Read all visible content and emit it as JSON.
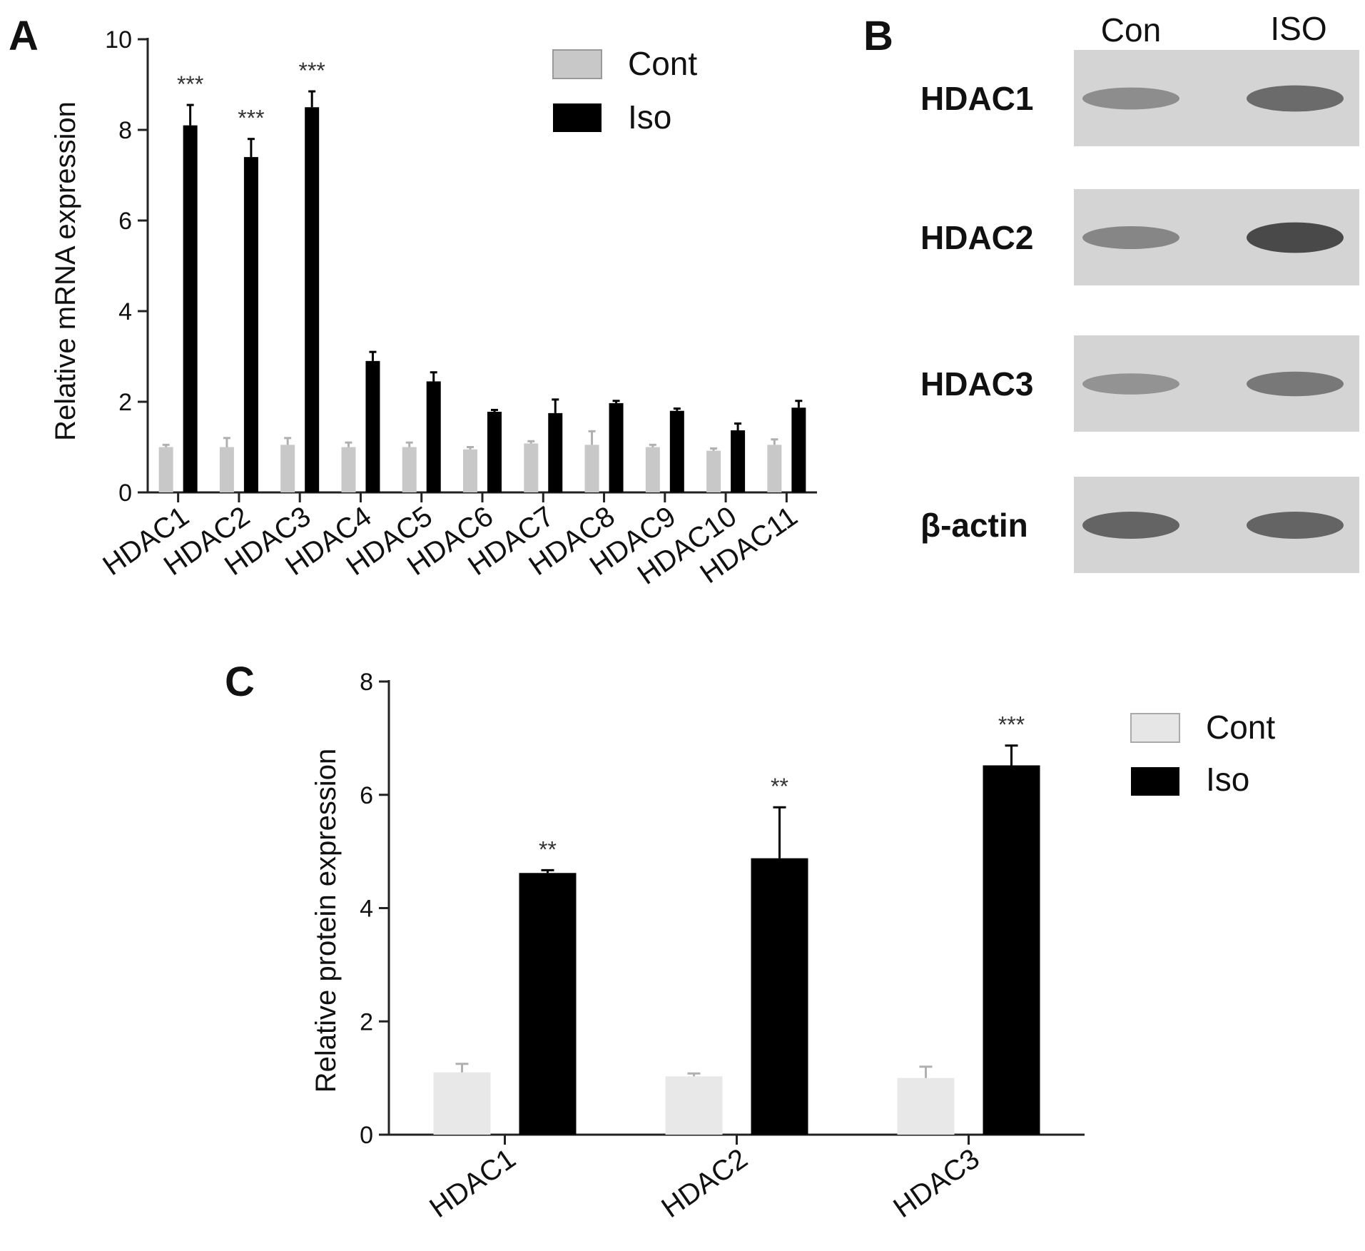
{
  "colors": {
    "cont": "#c8c8c8",
    "cont_light": "#e8e8e8",
    "iso": "#000000",
    "blot_bg": "#d4d4d4",
    "band": "#5a5a5a"
  },
  "panels": {
    "a": "A",
    "b": "B",
    "c": "C"
  },
  "chart_data": [
    {
      "type": "bar",
      "panel": "A",
      "ylabel": "Relative mRNA expression",
      "ylim": [
        0,
        10
      ],
      "yticks": [
        0,
        2,
        4,
        6,
        8,
        10
      ],
      "categories": [
        "HDAC1",
        "HDAC2",
        "HDAC3",
        "HDAC4",
        "HDAC5",
        "HDAC6",
        "HDAC7",
        "HDAC8",
        "HDAC9",
        "HDAC10",
        "HDAC11"
      ],
      "series": [
        {
          "name": "Cont",
          "values": [
            1.0,
            1.0,
            1.05,
            1.0,
            1.0,
            0.95,
            1.08,
            1.05,
            1.0,
            0.92,
            1.05
          ],
          "errors": [
            0.05,
            0.2,
            0.15,
            0.1,
            0.1,
            0.05,
            0.05,
            0.3,
            0.05,
            0.05,
            0.12
          ]
        },
        {
          "name": "Iso",
          "values": [
            8.1,
            7.4,
            8.5,
            2.9,
            2.45,
            1.78,
            1.75,
            1.97,
            1.8,
            1.37,
            1.87
          ],
          "errors": [
            0.45,
            0.4,
            0.35,
            0.2,
            0.2,
            0.04,
            0.3,
            0.05,
            0.05,
            0.15,
            0.15
          ]
        }
      ],
      "significance": [
        "***",
        "***",
        "***",
        "",
        "",
        "",
        "",
        "",
        "",
        "",
        ""
      ],
      "legend": [
        "Cont",
        "Iso"
      ],
      "legend_position": "top-right"
    },
    {
      "type": "bar",
      "panel": "C",
      "ylabel": "Relative protein expression",
      "ylim": [
        0,
        8
      ],
      "yticks": [
        0,
        2,
        4,
        6,
        8
      ],
      "categories": [
        "HDAC1",
        "HDAC2",
        "HDAC3"
      ],
      "series": [
        {
          "name": "Cont",
          "values": [
            1.1,
            1.03,
            1.0
          ],
          "errors": [
            0.15,
            0.05,
            0.2
          ]
        },
        {
          "name": "Iso",
          "values": [
            4.62,
            4.88,
            6.52
          ],
          "errors": [
            0.05,
            0.9,
            0.35
          ]
        }
      ],
      "significance": [
        "**",
        "**",
        "***"
      ],
      "legend": [
        "Cont",
        "Iso"
      ],
      "legend_position": "top-right"
    }
  ],
  "blot": {
    "lanes": [
      "Con",
      "ISO"
    ],
    "rows": [
      {
        "label": "HDAC1",
        "intensity": [
          0.45,
          0.7
        ]
      },
      {
        "label": "HDAC2",
        "intensity": [
          0.5,
          0.95
        ]
      },
      {
        "label": "HDAC3",
        "intensity": [
          0.4,
          0.6
        ]
      },
      {
        "label": "β-actin",
        "intensity": [
          0.75,
          0.75
        ]
      }
    ]
  }
}
